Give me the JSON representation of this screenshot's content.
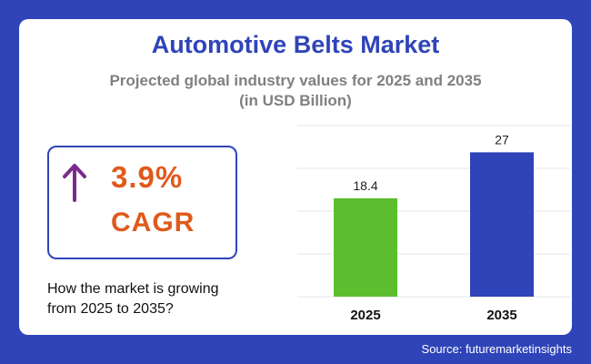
{
  "title": "Automotive Belts Market",
  "subtitle_line1": "Projected global industry values for 2025 and 2035",
  "subtitle_line2": "(in USD Billion)",
  "cagr": {
    "value": "3.9%",
    "label": "CAGR",
    "icon": "arrow-up-icon"
  },
  "question_line1": "How the market is growing",
  "question_line2": "from 2025 to 2035?",
  "source": "Source: futuremarketinsights",
  "colors": {
    "background": "#2f44b8",
    "title": "#2f44b8",
    "accent": "#e05a1c",
    "arrow": "#7b2a8c",
    "bar_2025": "#5cbd2e",
    "bar_2035": "#2f44b8"
  },
  "chart_data": {
    "type": "bar",
    "categories": [
      "2025",
      "2035"
    ],
    "values": [
      18.4,
      27
    ],
    "data_labels": [
      "18.4",
      "27"
    ],
    "bar_colors": [
      "#5cbd2e",
      "#2f44b8"
    ],
    "ylim": [
      0,
      32
    ],
    "grid": true,
    "xlabel": "",
    "ylabel": ""
  }
}
